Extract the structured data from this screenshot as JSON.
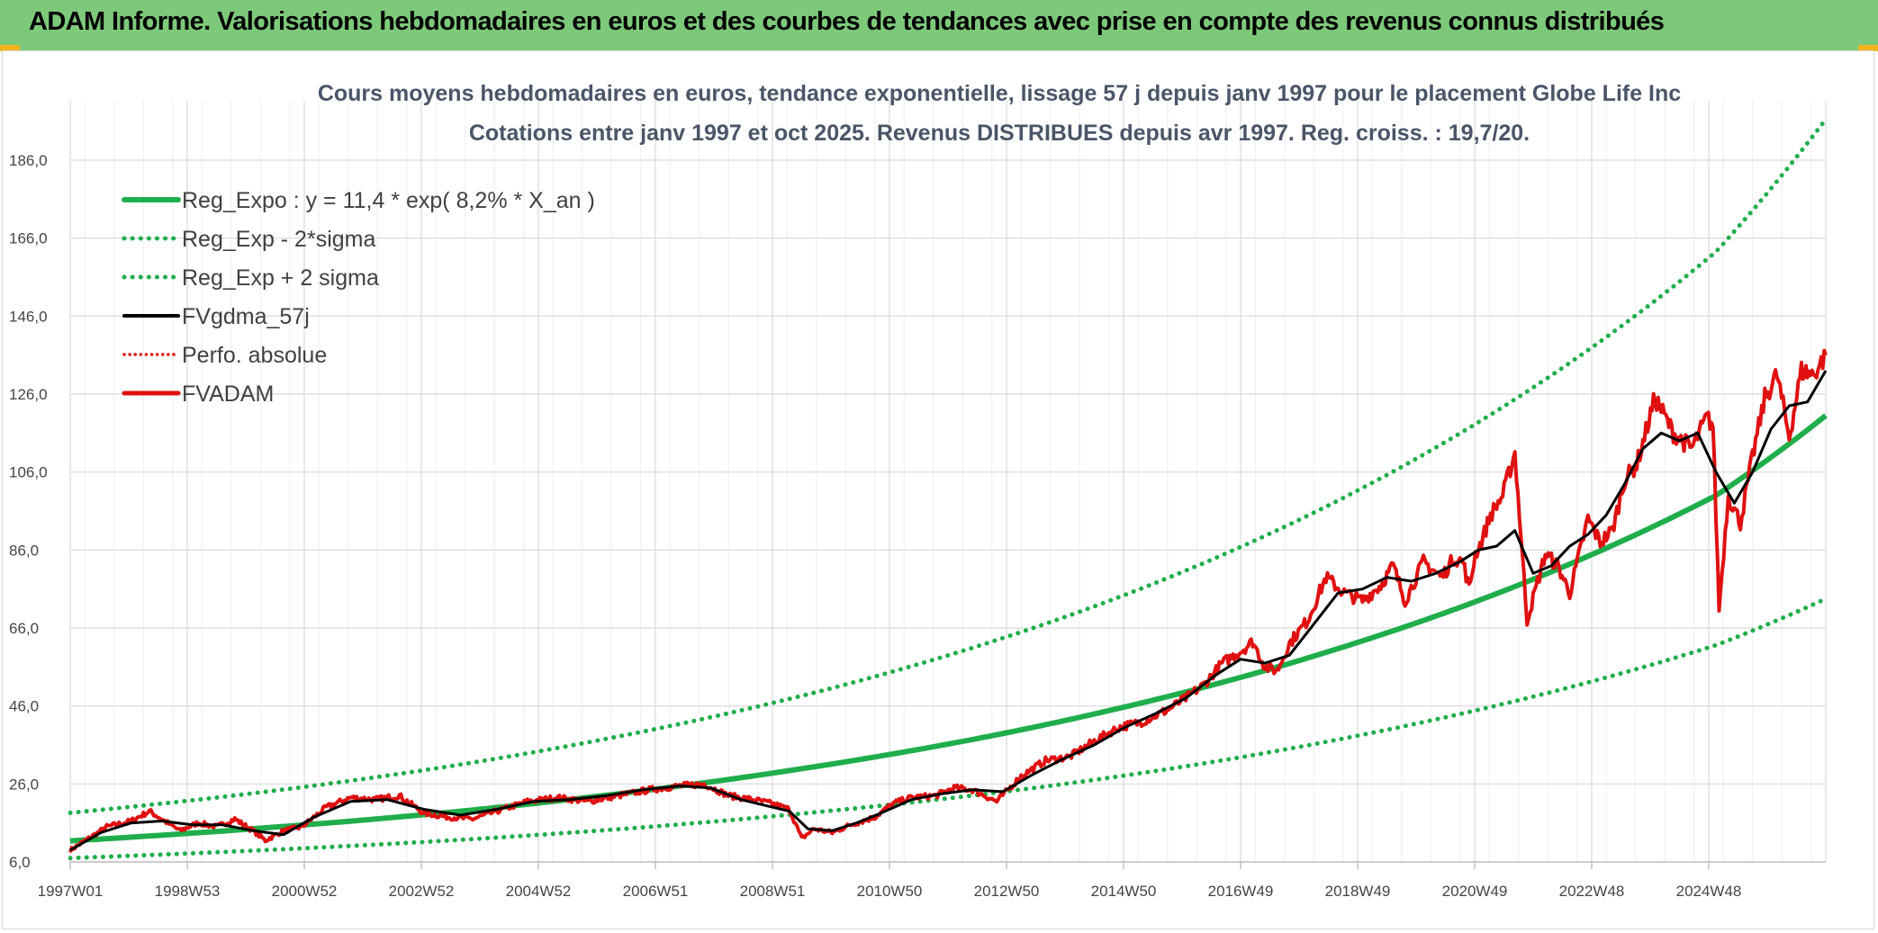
{
  "header": {
    "title": "ADAM Informe. Valorisations hebdomadaires en euros et des courbes de tendances avec prise en compte des revenus connus distribués"
  },
  "colors": {
    "banner": "#7dc97a",
    "reg_green": "#1fae4b",
    "red": "#e01010",
    "black": "#000000",
    "grid": "#d9d9d9"
  },
  "chart_data": {
    "type": "line",
    "title": [
      "Cours moyens hebdomadaires en euros, tendance exponentielle, lissage 57 j depuis janv 1997 pour le placement Globe Life Inc",
      "Cotations entre janv 1997 et oct 2025. Revenus DISTRIBUES depuis avr 1997.  Reg. croiss. : 19,7/20."
    ],
    "xlabel": "",
    "ylabel": "",
    "xlim": [
      1997.0,
      2025.8
    ],
    "ylim": [
      6.0,
      186.0
    ],
    "ytick_values": [
      6,
      26,
      46,
      66,
      86,
      106,
      126,
      146,
      166,
      186
    ],
    "ytick_labels": [
      "6,0",
      "26,0",
      "46,0",
      "66,0",
      "86,0",
      "106,0",
      "126,0",
      "146,0",
      "166,0",
      "186,0"
    ],
    "xtick_labels": [
      "1997W01",
      "1998W53",
      "2000W52",
      "2002W52",
      "2004W52",
      "2006W51",
      "2008W51",
      "2010W50",
      "2012W50",
      "2014W50",
      "2016W49",
      "2018W49",
      "2020W49",
      "2022W48",
      "2024W48"
    ],
    "legend": [
      {
        "key": "reg",
        "label": "Reg_Expo : y = 11,4 * exp( 8,2% *  X_an )",
        "style": "solid-green"
      },
      {
        "key": "low",
        "label": "Reg_Exp - 2*sigma",
        "style": "dotted-green"
      },
      {
        "key": "high",
        "label": "Reg_Exp + 2 sigma",
        "style": "dotted-green"
      },
      {
        "key": "ma",
        "label": "FVgdma_57j",
        "style": "solid-black"
      },
      {
        "key": "perf",
        "label": "Perfo. absolue",
        "style": "dotted-red"
      },
      {
        "key": "fv",
        "label": "FVADAM",
        "style": "solid-red"
      }
    ],
    "legend_position": "top-left",
    "series": [
      {
        "name": "Reg_Expo",
        "x": [
          1997.0,
          2000,
          2003,
          2006,
          2009,
          2012,
          2015,
          2018,
          2021,
          2024,
          2025.8
        ],
        "y": [
          11.4,
          14.5,
          18.4,
          23.5,
          29.9,
          38.0,
          48.4,
          61.7,
          78.5,
          100.0,
          120.5
        ]
      },
      {
        "name": "Reg_Exp - 2*sigma",
        "x": [
          1997.0,
          2000,
          2003,
          2006,
          2009,
          2012,
          2015,
          2018,
          2021,
          2024,
          2025.8
        ],
        "y": [
          7.0,
          8.9,
          11.3,
          14.4,
          18.4,
          23.4,
          29.8,
          38.0,
          48.4,
          61.6,
          73.5
        ]
      },
      {
        "name": "Reg_Exp + 2 sigma",
        "x": [
          1997.0,
          2000,
          2003,
          2006,
          2009,
          2012,
          2015,
          2018,
          2021,
          2024,
          2025.8
        ],
        "y": [
          18.6,
          23.6,
          30.0,
          38.2,
          48.6,
          61.9,
          78.8,
          100.3,
          127.7,
          162.5,
          196.5
        ]
      },
      {
        "name": "FVADAM",
        "x": [
          1997.0,
          1997.3,
          1997.6,
          1998.0,
          1998.3,
          1998.5,
          1998.8,
          1999.1,
          1999.4,
          1999.7,
          2000.0,
          2000.2,
          2000.5,
          2000.8,
          2001.2,
          2001.6,
          2002.0,
          2002.4,
          2002.8,
          2003.2,
          2003.6,
          2004.0,
          2004.5,
          2005.0,
          2005.5,
          2006.0,
          2006.5,
          2007.0,
          2007.4,
          2007.8,
          2008.2,
          2008.5,
          2008.8,
          2009.0,
          2009.2,
          2009.5,
          2009.8,
          2010.2,
          2010.5,
          2010.8,
          2011.2,
          2011.5,
          2011.8,
          2012.2,
          2012.6,
          2013.0,
          2013.4,
          2013.8,
          2014.2,
          2014.6,
          2015.0,
          2015.3,
          2015.6,
          2015.9,
          2016.2,
          2016.4,
          2016.6,
          2016.8,
          2017.0,
          2017.3,
          2017.6,
          2017.9,
          2018.2,
          2018.5,
          2018.7,
          2018.9,
          2019.2,
          2019.5,
          2019.7,
          2019.85,
          2019.95,
          2020.05,
          2020.15,
          2020.3,
          2020.5,
          2020.7,
          2020.9,
          2021.2,
          2021.4,
          2021.6,
          2021.9,
          2022.1,
          2022.3,
          2022.5,
          2022.7,
          2023.0,
          2023.3,
          2023.6,
          2023.85,
          2023.95,
          2024.05,
          2024.2,
          2024.4,
          2024.6,
          2024.8,
          2025.0,
          2025.2,
          2025.4,
          2025.6,
          2025.8
        ],
        "y": [
          9.0,
          12.0,
          15.0,
          16.5,
          19.0,
          17.0,
          14.0,
          16.0,
          15.0,
          17.0,
          14.0,
          11.5,
          14.0,
          15.0,
          20.0,
          22.5,
          22.0,
          23.0,
          18.5,
          17.5,
          17.0,
          19.0,
          21.5,
          22.5,
          21.5,
          23.0,
          24.5,
          25.5,
          26.0,
          23.0,
          22.0,
          21.0,
          19.5,
          12.0,
          14.5,
          13.5,
          15.5,
          17.5,
          21.0,
          22.5,
          23.0,
          25.0,
          24.5,
          21.5,
          28.0,
          32.0,
          33.0,
          37.0,
          40.5,
          42.0,
          45.0,
          48.0,
          51.5,
          57.0,
          60.0,
          62.5,
          56.0,
          55.0,
          62.0,
          68.0,
          79.0,
          75.0,
          73.0,
          77.0,
          82.0,
          73.0,
          83.0,
          79.0,
          84.0,
          83.0,
          76.0,
          85.0,
          88.0,
          95.0,
          100.0,
          111.0,
          68.0,
          85.0,
          82.0,
          75.0,
          94.0,
          88.0,
          91.0,
          104.0,
          108.0,
          125.0,
          116.0,
          112.0,
          120.0,
          118.0,
          71.0,
          100.0,
          93.0,
          110.0,
          125.0,
          131.0,
          115.0,
          132.0,
          131.0,
          136.0
        ]
      },
      {
        "name": "FVgdma_57j",
        "x": [
          1997.0,
          1997.5,
          1998.0,
          1998.5,
          1999.0,
          1999.5,
          2000.0,
          2000.5,
          2001.0,
          2001.6,
          2002.2,
          2002.8,
          2003.4,
          2004.0,
          2004.6,
          2005.2,
          2005.8,
          2006.4,
          2007.0,
          2007.5,
          2008.0,
          2008.4,
          2008.8,
          2009.1,
          2009.5,
          2009.9,
          2010.3,
          2010.8,
          2011.3,
          2011.8,
          2012.3,
          2012.8,
          2013.3,
          2013.8,
          2014.3,
          2014.8,
          2015.3,
          2015.8,
          2016.2,
          2016.6,
          2017.0,
          2017.4,
          2017.8,
          2018.2,
          2018.6,
          2019.0,
          2019.4,
          2019.8,
          2020.1,
          2020.4,
          2020.7,
          2021.0,
          2021.3,
          2021.6,
          2021.9,
          2022.2,
          2022.5,
          2022.8,
          2023.1,
          2023.4,
          2023.7,
          2024.0,
          2024.3,
          2024.6,
          2024.9,
          2025.2,
          2025.5,
          2025.8
        ],
        "y": [
          9.0,
          13.5,
          16.0,
          16.5,
          15.5,
          15.5,
          14.0,
          13.0,
          17.5,
          21.5,
          22.0,
          19.5,
          18.0,
          19.5,
          21.5,
          22.0,
          23.0,
          24.5,
          25.5,
          25.0,
          22.0,
          20.5,
          19.0,
          14.5,
          14.0,
          16.0,
          18.5,
          22.0,
          23.5,
          24.5,
          24.0,
          28.5,
          32.5,
          36.0,
          40.5,
          44.0,
          48.0,
          54.0,
          58.0,
          57.0,
          59.0,
          67.0,
          75.0,
          76.0,
          79.0,
          78.0,
          80.0,
          83.0,
          86.0,
          87.0,
          91.0,
          80.0,
          82.0,
          87.0,
          90.0,
          95.0,
          103.0,
          112.0,
          116.0,
          114.0,
          116.0,
          106.0,
          98.0,
          106.0,
          117.0,
          123.0,
          124.0,
          132.0
        ]
      }
    ]
  }
}
